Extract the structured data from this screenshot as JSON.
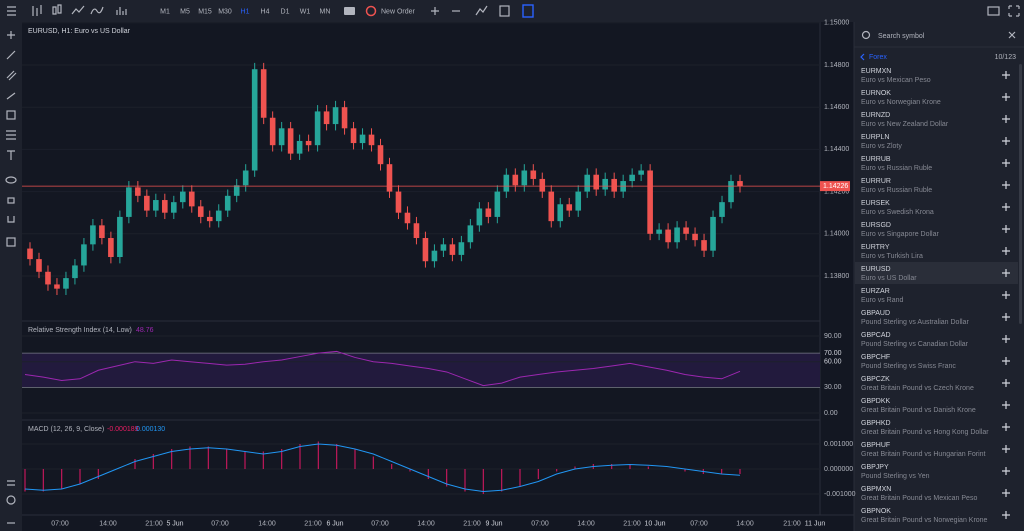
{
  "toolbar": {
    "timeframes": [
      "M1",
      "M5",
      "M15",
      "M30",
      "H1",
      "H4",
      "D1",
      "W1",
      "MN"
    ],
    "active_timeframe": "H1",
    "new_order": "New Order"
  },
  "chart": {
    "title": "EURUSD, H1: Euro vs US Dollar",
    "price_ticks": [
      "1.15000",
      "1.14800",
      "1.14600",
      "1.14400",
      "1.14200",
      "1.14000",
      "1.13800"
    ],
    "current_price": "1.14226",
    "open": [
      1.1393,
      1.1388,
      1.1382,
      1.1376,
      1.1374,
      1.1379,
      1.1385,
      1.1395,
      1.1404,
      1.1398,
      1.1389,
      1.1408,
      1.1422,
      1.1418,
      1.1411,
      1.1416,
      1.141,
      1.1415,
      1.142,
      1.1413,
      1.1408,
      1.1406,
      1.1411,
      1.1418,
      1.1423,
      1.143,
      1.1478,
      1.1455,
      1.1442,
      1.145,
      1.1438,
      1.1444,
      1.1442,
      1.1458,
      1.1452,
      1.146,
      1.145,
      1.1443,
      1.1447,
      1.1442,
      1.1433,
      1.142,
      1.141,
      1.1405,
      1.1398,
      1.1387,
      1.1392,
      1.1395,
      1.139,
      1.1396,
      1.1404,
      1.1412,
      1.1408,
      1.142,
      1.1428,
      1.1423,
      1.143,
      1.1426,
      1.142,
      1.1406,
      1.1414,
      1.1411,
      1.142,
      1.1428,
      1.1421,
      1.1426,
      1.142,
      1.1425,
      1.1428,
      1.143,
      1.14,
      1.1402,
      1.1396,
      1.1403,
      1.14,
      1.1397,
      1.1392,
      1.1408,
      1.1415,
      1.1425
    ],
    "high": [
      1.1396,
      1.1391,
      1.1385,
      1.1379,
      1.1382,
      1.1388,
      1.1398,
      1.1407,
      1.1407,
      1.1401,
      1.1411,
      1.1425,
      1.1425,
      1.1421,
      1.1419,
      1.1419,
      1.1418,
      1.1423,
      1.1423,
      1.1416,
      1.1411,
      1.1414,
      1.1421,
      1.1426,
      1.1433,
      1.1481,
      1.1481,
      1.1458,
      1.1453,
      1.1453,
      1.1447,
      1.1447,
      1.1461,
      1.1461,
      1.1463,
      1.1463,
      1.1453,
      1.145,
      1.145,
      1.1445,
      1.1436,
      1.1423,
      1.1413,
      1.1408,
      1.1401,
      1.1395,
      1.1398,
      1.1398,
      1.1399,
      1.1407,
      1.1415,
      1.1415,
      1.1423,
      1.1431,
      1.1431,
      1.1433,
      1.1433,
      1.1429,
      1.1423,
      1.1417,
      1.1417,
      1.1423,
      1.1431,
      1.1431,
      1.1429,
      1.1429,
      1.1428,
      1.1431,
      1.1433,
      1.1433,
      1.1405,
      1.1405,
      1.1406,
      1.1406,
      1.1403,
      1.14,
      1.1411,
      1.1418,
      1.1428,
      1.1428
    ],
    "low": [
      1.1385,
      1.1379,
      1.1373,
      1.1371,
      1.1371,
      1.1376,
      1.1382,
      1.1392,
      1.1395,
      1.1386,
      1.1386,
      1.1405,
      1.1415,
      1.1408,
      1.1408,
      1.1407,
      1.1407,
      1.1412,
      1.141,
      1.1405,
      1.1403,
      1.1403,
      1.1408,
      1.1415,
      1.142,
      1.1427,
      1.1452,
      1.1439,
      1.1439,
      1.1435,
      1.1435,
      1.1439,
      1.1439,
      1.1449,
      1.1449,
      1.1447,
      1.144,
      1.144,
      1.1439,
      1.143,
      1.1417,
      1.1407,
      1.1402,
      1.1395,
      1.1384,
      1.1384,
      1.1389,
      1.1387,
      1.1387,
      1.1393,
      1.1401,
      1.1405,
      1.1405,
      1.1417,
      1.142,
      1.142,
      1.1423,
      1.1417,
      1.1403,
      1.1403,
      1.1408,
      1.1408,
      1.1417,
      1.1418,
      1.1418,
      1.1417,
      1.1417,
      1.1422,
      1.1425,
      1.1397,
      1.1397,
      1.1393,
      1.1393,
      1.1397,
      1.1394,
      1.1389,
      1.1389,
      1.1405,
      1.1412,
      1.14196
    ],
    "close": [
      1.1388,
      1.1382,
      1.1376,
      1.1374,
      1.1379,
      1.1385,
      1.1395,
      1.1404,
      1.1398,
      1.1389,
      1.1408,
      1.1422,
      1.1418,
      1.1411,
      1.1416,
      1.141,
      1.1415,
      1.142,
      1.1413,
      1.1408,
      1.1406,
      1.1411,
      1.1418,
      1.1423,
      1.143,
      1.1478,
      1.1455,
      1.1442,
      1.145,
      1.1438,
      1.1444,
      1.1442,
      1.1458,
      1.1452,
      1.146,
      1.145,
      1.1443,
      1.1447,
      1.1442,
      1.1433,
      1.142,
      1.141,
      1.1405,
      1.1398,
      1.1387,
      1.1392,
      1.1395,
      1.139,
      1.1396,
      1.1404,
      1.1412,
      1.1408,
      1.142,
      1.1428,
      1.1423,
      1.143,
      1.1426,
      1.142,
      1.1406,
      1.1414,
      1.1411,
      1.142,
      1.1428,
      1.1421,
      1.1426,
      1.142,
      1.1425,
      1.1428,
      1.143,
      1.14,
      1.1402,
      1.1396,
      1.1403,
      1.14,
      1.1397,
      1.1392,
      1.1408,
      1.1415,
      1.1425,
      1.14226
    ],
    "time_labels": [
      "07:00",
      "14:00",
      "21:00",
      "5 Jun",
      "07:00",
      "14:00",
      "21:00",
      "6 Jun",
      "07:00",
      "14:00",
      "21:00",
      "9 Jun",
      "07:00",
      "14:00",
      "21:00",
      "10 Jun",
      "07:00",
      "14:00",
      "21:00",
      "11 Jun"
    ]
  },
  "rsi": {
    "label": "Relative Strength Index (14, Low)",
    "value": "48.76",
    "ticks": [
      "90.00",
      "70.00",
      "60.00",
      "30.00",
      "0.00"
    ],
    "values": [
      45,
      42,
      38,
      40,
      50,
      55,
      60,
      58,
      62,
      60,
      58,
      56,
      57,
      60,
      62,
      66,
      70,
      72,
      65,
      60,
      58,
      55,
      52,
      48,
      40,
      32,
      35,
      42,
      45,
      48,
      50,
      52,
      55,
      58,
      54,
      50,
      45,
      42,
      40,
      48.76
    ]
  },
  "macd": {
    "label": "MACD (12, 26, 9, Close)",
    "histogram_value": "-0.000189",
    "signal_value": "0.000130",
    "ticks": [
      "0.001000",
      "0.000000",
      "-0.001000"
    ],
    "line": [
      -0.0008,
      -0.00085,
      -0.0008,
      -0.0006,
      -0.0003,
      0,
      0.0003,
      0.0005,
      0.0007,
      0.0008,
      0.00085,
      0.0008,
      0.0007,
      0.0006,
      0.0007,
      0.0009,
      0.001,
      0.00095,
      0.0008,
      0.0006,
      0.0003,
      0,
      -0.0003,
      -0.0006,
      -0.0008,
      -0.0009,
      -0.00085,
      -0.0007,
      -0.0005,
      -0.0002,
      0,
      0.0001,
      0.00015,
      0.00018,
      0.00015,
      0.0001,
      0,
      -0.0001,
      -0.0002,
      -0.00025
    ],
    "histogram": [
      -0.0009,
      -0.0009,
      -0.0008,
      -0.0006,
      -0.0004,
      0,
      0.0004,
      0.0006,
      0.0008,
      0.0009,
      0.0009,
      0.0008,
      0.0007,
      0.0007,
      0.0008,
      0.001,
      0.0011,
      0.001,
      0.0008,
      0.0005,
      0.0002,
      -0.0001,
      -0.0004,
      -0.0007,
      -0.0009,
      -0.001,
      -0.0009,
      -0.0007,
      -0.0004,
      -0.0001,
      0.0001,
      0.0002,
      0.0002,
      0.0002,
      0.0001,
      0,
      -0.0001,
      -0.0002,
      -0.0002,
      -0.0002
    ]
  },
  "symbols": {
    "search_placeholder": "Search symbol",
    "group": "Forex",
    "count": "10/123",
    "selected": "EURUSD",
    "items": [
      {
        "code": "EURMXN",
        "name": "Euro vs Mexican Peso"
      },
      {
        "code": "EURNOK",
        "name": "Euro vs Norwegian Krone"
      },
      {
        "code": "EURNZD",
        "name": "Euro vs New Zealand Dollar"
      },
      {
        "code": "EURPLN",
        "name": "Euro vs Zloty"
      },
      {
        "code": "EURRUB",
        "name": "Euro vs Russian Ruble"
      },
      {
        "code": "EURRUR",
        "name": "Euro vs Russian Ruble"
      },
      {
        "code": "EURSEK",
        "name": "Euro vs Swedish Krona"
      },
      {
        "code": "EURSGD",
        "name": "Euro vs Singapore Dollar"
      },
      {
        "code": "EURTRY",
        "name": "Euro vs Turkish Lira"
      },
      {
        "code": "EURUSD",
        "name": "Euro vs US Dollar"
      },
      {
        "code": "EURZAR",
        "name": "Euro vs Rand"
      },
      {
        "code": "GBPAUD",
        "name": "Pound Sterling vs Australian Dollar"
      },
      {
        "code": "GBPCAD",
        "name": "Pound Sterling vs Canadian Dollar"
      },
      {
        "code": "GBPCHF",
        "name": "Pound Sterling vs Swiss Franc"
      },
      {
        "code": "GBPCZK",
        "name": "Great Britain Pound vs Czech Krone"
      },
      {
        "code": "GBPDKK",
        "name": "Great Britain Pound vs Danish Krone"
      },
      {
        "code": "GBPHKD",
        "name": "Great Britain Pound vs Hong Kong Dollar"
      },
      {
        "code": "GBPHUF",
        "name": "Great Britain Pound vs Hungarian Forint"
      },
      {
        "code": "GBPJPY",
        "name": "Pound Sterling vs Yen"
      },
      {
        "code": "GBPMXN",
        "name": "Great Britain Pound vs Mexican Peso"
      },
      {
        "code": "GBPNOK",
        "name": "Great Britain Pound vs Norwegian Krone"
      }
    ]
  }
}
